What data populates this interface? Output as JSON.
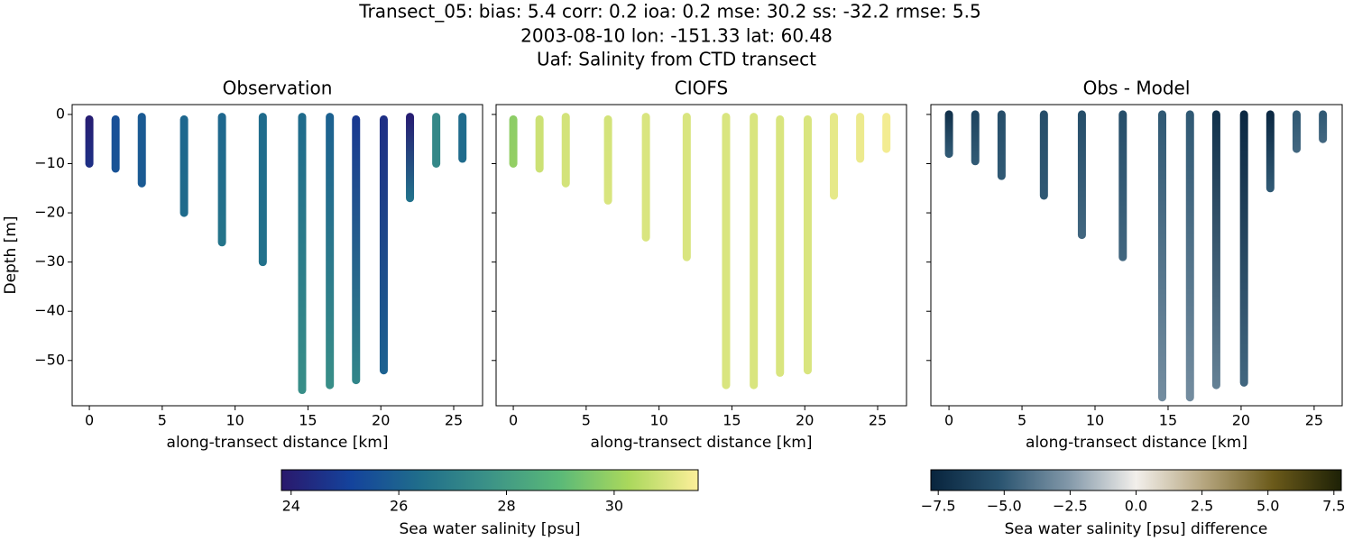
{
  "title_lines": [
    "Transect_05: bias: 5.4  corr: 0.2  ioa: 0.2  mse: 30.2  ss: -32.2  rmse: 5.5",
    "2003-08-10 lon: -151.33 lat: 60.48",
    "Uaf: Salinity from CTD transect"
  ],
  "chart_data": [
    {
      "type": "profiles",
      "title": "Observation",
      "xlabel": "along-transect distance [km]",
      "ylabel": "Depth [m]",
      "xlim": [
        -1.18,
        26.98
      ],
      "ylim": [
        -59.2,
        2.0
      ],
      "xticks": [
        0,
        5,
        10,
        15,
        20,
        25
      ],
      "yticks": [
        0,
        {
          "value": -10,
          "label": "−10"
        },
        {
          "value": -20,
          "label": "−20"
        },
        {
          "value": -30,
          "label": "−30"
        },
        {
          "value": -40,
          "label": "−40"
        },
        {
          "value": -50,
          "label": "−50"
        }
      ],
      "casts": [
        {
          "x": 0,
          "y": [
            -1,
            -10
          ],
          "values": [
            24.0,
            24.5
          ]
        },
        {
          "x": 1.8,
          "y": [
            -1,
            -11
          ],
          "values": [
            25.5,
            25.6
          ]
        },
        {
          "x": 3.6,
          "y": [
            -0.5,
            -14
          ],
          "values": [
            25.8,
            25.8
          ]
        },
        {
          "x": 6.5,
          "y": [
            -1,
            -20
          ],
          "values": [
            26.2,
            26.3
          ]
        },
        {
          "x": 9.1,
          "y": [
            -0.5,
            -26
          ],
          "values": [
            26.2,
            26.6
          ]
        },
        {
          "x": 11.9,
          "y": [
            -0.5,
            -30
          ],
          "values": [
            26.3,
            26.5
          ]
        },
        {
          "x": 14.6,
          "y": [
            -0.5,
            -56
          ],
          "values": [
            26.3,
            27.5
          ]
        },
        {
          "x": 16.5,
          "y": [
            -0.5,
            -55
          ],
          "values": [
            26.0,
            27.5
          ]
        },
        {
          "x": 18.3,
          "y": [
            -1,
            -54
          ],
          "values": [
            24.8,
            27.2
          ]
        },
        {
          "x": 20.2,
          "y": [
            -1,
            -52
          ],
          "values": [
            24.5,
            26.0
          ]
        },
        {
          "x": 22,
          "y": [
            -0.5,
            -17
          ],
          "values": [
            24.0,
            26.5
          ]
        },
        {
          "x": 23.8,
          "y": [
            -0.5,
            -10
          ],
          "values": [
            27.3,
            27.3
          ]
        },
        {
          "x": 25.6,
          "y": [
            -0.5,
            -9
          ],
          "values": [
            26.3,
            26.3
          ]
        }
      ]
    },
    {
      "type": "profiles",
      "title": "CIOFS",
      "xlabel": "along-transect distance [km]",
      "xlim": [
        -1.18,
        26.98
      ],
      "ylim": [
        -59.2,
        2.0
      ],
      "xticks": [
        0,
        5,
        10,
        15,
        20,
        25
      ],
      "yticks": [
        0,
        -10,
        -20,
        -30,
        -40,
        -50
      ],
      "casts": [
        {
          "x": 0,
          "y": [
            -1,
            -10
          ],
          "values": [
            29.8,
            29.9
          ]
        },
        {
          "x": 1.8,
          "y": [
            -1,
            -11
          ],
          "values": [
            30.8,
            30.8
          ]
        },
        {
          "x": 3.6,
          "y": [
            -0.5,
            -14
          ],
          "values": [
            30.9,
            30.9
          ]
        },
        {
          "x": 6.5,
          "y": [
            -1,
            -17.5
          ],
          "values": [
            30.9,
            31.0
          ]
        },
        {
          "x": 9.1,
          "y": [
            -0.5,
            -25
          ],
          "values": [
            31.0,
            31.0
          ]
        },
        {
          "x": 11.9,
          "y": [
            -0.5,
            -29
          ],
          "values": [
            31.0,
            31.0
          ]
        },
        {
          "x": 14.6,
          "y": [
            -0.5,
            -55
          ],
          "values": [
            31.0,
            31.0
          ]
        },
        {
          "x": 16.5,
          "y": [
            -0.5,
            -55
          ],
          "values": [
            31.0,
            31.0
          ]
        },
        {
          "x": 18.3,
          "y": [
            -1,
            -52.5
          ],
          "values": [
            31.0,
            31.0
          ]
        },
        {
          "x": 20.2,
          "y": [
            -1,
            -52
          ],
          "values": [
            31.0,
            31.0
          ]
        },
        {
          "x": 22,
          "y": [
            -0.5,
            -16.5
          ],
          "values": [
            31.2,
            31.2
          ]
        },
        {
          "x": 23.8,
          "y": [
            -0.5,
            -9
          ],
          "values": [
            31.3,
            31.3
          ]
        },
        {
          "x": 25.6,
          "y": [
            -0.5,
            -7
          ],
          "values": [
            31.4,
            31.4
          ]
        }
      ]
    },
    {
      "type": "profiles",
      "title": "Obs - Model",
      "xlabel": "along-transect distance [km]",
      "xlim": [
        -1.24,
        26.92
      ],
      "ylim": [
        -59.2,
        2.0
      ],
      "xticks": [
        0,
        5,
        10,
        15,
        20,
        25
      ],
      "yticks": [
        0,
        -10,
        -20,
        -30,
        -40,
        -50
      ],
      "casts": [
        {
          "x": 0,
          "y": [
            0,
            -8
          ],
          "values": [
            -7.0,
            -5.0
          ]
        },
        {
          "x": 1.8,
          "y": [
            0,
            -9.5
          ],
          "values": [
            -6.0,
            -5.0
          ]
        },
        {
          "x": 3.6,
          "y": [
            0,
            -12.5
          ],
          "values": [
            -5.5,
            -5.0
          ]
        },
        {
          "x": 6.5,
          "y": [
            0,
            -16.5
          ],
          "values": [
            -5.5,
            -5.0
          ]
        },
        {
          "x": 9.1,
          "y": [
            0,
            -24.5
          ],
          "values": [
            -5.5,
            -4.5
          ]
        },
        {
          "x": 11.9,
          "y": [
            0,
            -29
          ],
          "values": [
            -5.5,
            -4.5
          ]
        },
        {
          "x": 14.6,
          "y": [
            0,
            -57.5
          ],
          "values": [
            -5.0,
            -3.0
          ]
        },
        {
          "x": 16.5,
          "y": [
            0,
            -57.5
          ],
          "values": [
            -5.0,
            -3.0
          ]
        },
        {
          "x": 18.3,
          "y": [
            0,
            -55
          ],
          "values": [
            -7.0,
            -3.5
          ]
        },
        {
          "x": 20.2,
          "y": [
            0,
            -54.5
          ],
          "values": [
            -7.5,
            -4.5
          ]
        },
        {
          "x": 22,
          "y": [
            0,
            -15
          ],
          "values": [
            -7.5,
            -5.0
          ]
        },
        {
          "x": 23.8,
          "y": [
            0,
            -7
          ],
          "values": [
            -5.0,
            -4.5
          ]
        },
        {
          "x": 25.6,
          "y": [
            0,
            -5
          ],
          "values": [
            -5.0,
            -4.5
          ]
        }
      ]
    }
  ],
  "colorbars": [
    {
      "label": "Sea water salinity [psu]",
      "clim": [
        23.82,
        31.56
      ],
      "ticks": [
        24,
        26,
        28,
        30
      ],
      "colormap": [
        "#2a186c",
        "#14439c",
        "#206e8b",
        "#3c9387",
        "#5ab978",
        "#aad85c",
        "#fdef9a"
      ]
    },
    {
      "label": "Sea water salinity [psu] difference",
      "clim": [
        -7.78,
        7.78
      ],
      "ticks": [
        {
          "value": -7.5,
          "label": "−7.5"
        },
        {
          "value": -5.0,
          "label": "−5.0"
        },
        {
          "value": -2.5,
          "label": "−2.5"
        },
        {
          "value": 0.0,
          "label": "0.0"
        },
        2.5,
        {
          "value": 5.0,
          "label": "5.0"
        },
        7.5
      ],
      "colormap": [
        "#08243d",
        "#2a5470",
        "#8197a8",
        "#f2efeb",
        "#b5a57e",
        "#6b5a1a",
        "#1d2106"
      ]
    }
  ]
}
